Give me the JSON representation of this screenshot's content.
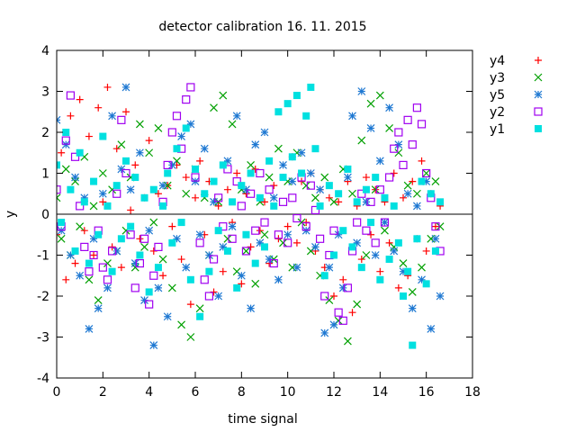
{
  "chart_data": {
    "type": "scatter",
    "title": "detector calibration 16. 11. 2015",
    "xlabel": "time signal",
    "ylabel": "y",
    "xlim": [
      0,
      18
    ],
    "ylim": [
      -4,
      4
    ],
    "xticks": [
      0,
      2,
      4,
      6,
      8,
      10,
      12,
      14,
      16,
      18
    ],
    "yticks": [
      -4,
      -3,
      -2,
      -1,
      0,
      1,
      2,
      3,
      4
    ],
    "grid": false,
    "zero_line": true,
    "legend": "outside-right",
    "sample_step": 0.2,
    "series": [
      {
        "name": "y4",
        "marker": "plus",
        "color": "#ff0000",
        "x": [
          0,
          0.2,
          0.4,
          0.6,
          0.8,
          1,
          1.2,
          1.4,
          1.6,
          1.8,
          2,
          2.2,
          2.4,
          2.6,
          2.8,
          3,
          3.2,
          3.4,
          3.6,
          3.8,
          4,
          4.2,
          4.4,
          4.6,
          4.8,
          5,
          5.2,
          5.4,
          5.6,
          5.8,
          6,
          6.2,
          6.4,
          6.6,
          6.8,
          7,
          7.2,
          7.4,
          7.6,
          7.8,
          8,
          8.2,
          8.4,
          8.6,
          8.8,
          9,
          9.2,
          9.4,
          9.6,
          9.8,
          10,
          10.2,
          10.4,
          10.6,
          10.8,
          11,
          11.2,
          11.4,
          11.6,
          11.8,
          12,
          12.2,
          12.4,
          12.6,
          12.8,
          13,
          13.2,
          13.4,
          13.6,
          13.8,
          14,
          14.2,
          14.4,
          14.6,
          14.8,
          15,
          15.2,
          15.4,
          15.6,
          15.8,
          16,
          16.2,
          16.4,
          16.6
        ],
        "y": [
          -0.5,
          1.5,
          -1.6,
          2.4,
          -1.2,
          2.8,
          -0.4,
          1.9,
          -1.0,
          2.6,
          0.3,
          3.1,
          -0.8,
          1.6,
          -1.3,
          2.5,
          0.1,
          1.2,
          -0.6,
          0.4,
          1.8,
          -0.9,
          0.5,
          -1.5,
          0.7,
          -0.3,
          1.2,
          -1.1,
          0.9,
          -2.2,
          0.4,
          1.3,
          -0.5,
          0.8,
          -1.9,
          0.2,
          -1.4,
          0.6,
          -0.2,
          1.0,
          -1.7,
          0.5,
          -0.8,
          1.1,
          -0.4,
          0.3,
          -1.2,
          0.7,
          -0.6,
          0.9,
          -0.3,
          1.4,
          -0.7,
          0.8,
          -0.2,
          1.0,
          -0.9,
          0.6,
          -1.3,
          0.4,
          -2.0,
          0.3,
          -1.6,
          0.8,
          -2.4,
          0.2,
          -1.1,
          0.9,
          -0.5,
          0.6,
          -1.4,
          0.3,
          -0.7,
          1.0,
          -1.8,
          0.4,
          -1.5,
          0.8,
          -0.6,
          1.3,
          -0.9,
          0.5,
          -0.3,
          0.2
        ]
      },
      {
        "name": "y3",
        "marker": "cross",
        "color": "#00a000",
        "x": [
          0,
          0.2,
          0.4,
          0.6,
          0.8,
          1,
          1.2,
          1.4,
          1.6,
          1.8,
          2,
          2.2,
          2.4,
          2.6,
          2.8,
          3,
          3.2,
          3.4,
          3.6,
          3.8,
          4,
          4.2,
          4.4,
          4.6,
          4.8,
          5,
          5.2,
          5.4,
          5.6,
          5.8,
          6,
          6.2,
          6.4,
          6.6,
          6.8,
          7,
          7.2,
          7.4,
          7.6,
          7.8,
          8,
          8.2,
          8.4,
          8.6,
          8.8,
          9,
          9.2,
          9.4,
          9.6,
          9.8,
          10,
          10.2,
          10.4,
          10.6,
          10.8,
          11,
          11.2,
          11.4,
          11.6,
          11.8,
          12,
          12.2,
          12.4,
          12.6,
          12.8,
          13,
          13.2,
          13.4,
          13.6,
          13.8,
          14,
          14.2,
          14.4,
          14.6,
          14.8,
          15,
          15.2,
          15.4,
          15.6,
          15.8,
          16,
          16.2,
          16.4,
          16.6
        ],
        "y": [
          0.4,
          -0.6,
          1.1,
          -1.0,
          0.8,
          -0.3,
          1.4,
          -1.6,
          0.2,
          -2.1,
          1.0,
          -1.2,
          0.6,
          -0.9,
          1.7,
          -0.4,
          0.9,
          -1.3,
          2.2,
          -0.8,
          1.5,
          -0.2,
          2.1,
          -1.1,
          0.7,
          -1.8,
          1.3,
          -2.7,
          0.5,
          -3.0,
          1.1,
          -2.3,
          0.4,
          -1.0,
          2.6,
          0.3,
          2.9,
          -0.6,
          2.2,
          -1.4,
          0.6,
          -0.9,
          1.2,
          -1.7,
          0.3,
          -0.5,
          0.9,
          -1.1,
          1.6,
          -0.7,
          0.8,
          -1.3,
          1.5,
          -0.2,
          0.7,
          -0.9,
          0.4,
          -1.5,
          0.9,
          -2.1,
          0.3,
          -2.6,
          1.1,
          -3.1,
          0.5,
          -2.2,
          1.8,
          -1.0,
          2.7,
          0.6,
          2.9,
          -0.4,
          2.1,
          -0.8,
          1.5,
          -1.2,
          0.7,
          -1.9,
          0.5,
          -1.3,
          1.0,
          -0.6,
          0.8,
          -0.3
        ]
      },
      {
        "name": "y5",
        "marker": "star",
        "color": "#1e78d2",
        "x": [
          0,
          0.2,
          0.4,
          0.6,
          0.8,
          1,
          1.2,
          1.4,
          1.6,
          1.8,
          2,
          2.2,
          2.4,
          2.6,
          2.8,
          3,
          3.2,
          3.4,
          3.6,
          3.8,
          4,
          4.2,
          4.4,
          4.6,
          4.8,
          5,
          5.2,
          5.4,
          5.6,
          5.8,
          6,
          6.2,
          6.4,
          6.6,
          6.8,
          7,
          7.2,
          7.4,
          7.6,
          7.8,
          8,
          8.2,
          8.4,
          8.6,
          8.8,
          9,
          9.2,
          9.4,
          9.6,
          9.8,
          10,
          10.2,
          10.4,
          10.6,
          10.8,
          11,
          11.2,
          11.4,
          11.6,
          11.8,
          12,
          12.2,
          12.4,
          12.6,
          12.8,
          13,
          13.2,
          13.4,
          13.6,
          13.8,
          14,
          14.2,
          14.4,
          14.6,
          14.8,
          15,
          15.2,
          15.4,
          15.6,
          15.8,
          16,
          16.2,
          16.4,
          16.6
        ],
        "y": [
          2.3,
          -0.4,
          1.7,
          -1.0,
          0.9,
          -1.5,
          0.4,
          -2.8,
          -0.6,
          -2.3,
          0.5,
          -1.8,
          2.4,
          -0.9,
          1.1,
          3.1,
          0.6,
          -1.2,
          1.5,
          -2.1,
          -0.4,
          -3.2,
          -1.8,
          0.7,
          -2.5,
          1.2,
          -0.6,
          1.9,
          -1.3,
          2.2,
          0.8,
          -0.5,
          1.6,
          -1.0,
          0.3,
          -2.0,
          -0.8,
          1.3,
          -0.3,
          2.4,
          -1.5,
          0.6,
          -2.3,
          1.7,
          -0.7,
          2.0,
          -1.1,
          0.4,
          -1.6,
          1.2,
          -0.5,
          0.8,
          -1.3,
          1.5,
          -0.4,
          1.0,
          -0.8,
          0.6,
          -2.9,
          -1.3,
          -2.7,
          -0.5,
          -1.8,
          0.9,
          2.4,
          -0.7,
          3.0,
          0.3,
          2.1,
          -1.0,
          1.3,
          -0.2,
          2.6,
          -0.9,
          1.7,
          -1.4,
          0.5,
          -2.3,
          0.2,
          -1.6,
          0.8,
          -2.8,
          -0.6,
          -2.0
        ]
      },
      {
        "name": "y2",
        "marker": "square",
        "color": "#a000f0",
        "x": [
          0,
          0.2,
          0.4,
          0.6,
          0.8,
          1,
          1.2,
          1.4,
          1.6,
          1.8,
          2,
          2.2,
          2.4,
          2.6,
          2.8,
          3,
          3.2,
          3.4,
          3.6,
          3.8,
          4,
          4.2,
          4.4,
          4.6,
          4.8,
          5,
          5.2,
          5.4,
          5.6,
          5.8,
          6,
          6.2,
          6.4,
          6.6,
          6.8,
          7,
          7.2,
          7.4,
          7.6,
          7.8,
          8,
          8.2,
          8.4,
          8.6,
          8.8,
          9,
          9.2,
          9.4,
          9.6,
          9.8,
          10,
          10.2,
          10.4,
          10.6,
          10.8,
          11,
          11.2,
          11.4,
          11.6,
          11.8,
          12,
          12.2,
          12.4,
          12.6,
          12.8,
          13,
          13.2,
          13.4,
          13.6,
          13.8,
          14,
          14.2,
          14.4,
          14.6,
          14.8,
          15,
          15.2,
          15.4,
          15.6,
          15.8,
          16,
          16.2,
          16.4,
          16.6
        ],
        "y": [
          0.6,
          -0.3,
          1.8,
          2.9,
          1.4,
          0.2,
          -0.8,
          -1.4,
          -1.0,
          -0.4,
          -1.3,
          -1.6,
          -0.9,
          0.5,
          2.3,
          1.0,
          -0.5,
          -1.8,
          -1.2,
          -0.6,
          -2.2,
          -1.5,
          -0.8,
          0.3,
          1.2,
          2.0,
          2.4,
          1.6,
          2.8,
          3.1,
          0.9,
          -0.7,
          -1.6,
          -2.0,
          -1.1,
          0.4,
          -0.3,
          1.1,
          -0.6,
          0.8,
          0.2,
          -0.9,
          0.5,
          -0.4,
          1.0,
          -0.2,
          0.6,
          -1.2,
          -0.5,
          0.3,
          -0.7,
          0.4,
          -0.1,
          0.9,
          -0.3,
          0.7,
          0.1,
          -0.6,
          -2.0,
          -1.0,
          -0.4,
          -2.4,
          -2.6,
          -1.8,
          -0.9,
          -0.2,
          0.5,
          -0.4,
          0.3,
          -0.7,
          0.6,
          -0.2,
          0.9,
          1.6,
          2.0,
          1.2,
          2.3,
          1.7,
          2.6,
          2.2,
          1.0,
          0.4,
          -0.3,
          -0.9
        ]
      },
      {
        "name": "y1",
        "marker": "filled-square",
        "color": "#00e0e0",
        "x": [
          0,
          0.2,
          0.4,
          0.6,
          0.8,
          1,
          1.2,
          1.4,
          1.6,
          1.8,
          2,
          2.2,
          2.4,
          2.6,
          2.8,
          3,
          3.2,
          3.4,
          3.6,
          3.8,
          4,
          4.2,
          4.4,
          4.6,
          4.8,
          5,
          5.2,
          5.4,
          5.6,
          5.8,
          6,
          6.2,
          6.4,
          6.6,
          6.8,
          7,
          7.2,
          7.4,
          7.6,
          7.8,
          8,
          8.2,
          8.4,
          8.6,
          8.8,
          9,
          9.2,
          9.4,
          9.6,
          9.8,
          10,
          10.2,
          10.4,
          10.6,
          10.8,
          11,
          11.2,
          11.4,
          11.6,
          11.8,
          12,
          12.2,
          12.4,
          12.6,
          12.8,
          13,
          13.2,
          13.4,
          13.6,
          13.8,
          14,
          14.2,
          14.4,
          14.6,
          14.8,
          15,
          15.2,
          15.4,
          15.6,
          15.8,
          16,
          16.2,
          16.4,
          16.6
        ],
        "y": [
          1.2,
          -0.2,
          2.0,
          0.6,
          -0.9,
          1.5,
          0.3,
          -1.2,
          0.8,
          -0.5,
          1.9,
          0.2,
          -1.4,
          0.7,
          -0.6,
          1.3,
          -0.3,
          0.9,
          -1.0,
          0.4,
          -1.9,
          0.6,
          -1.3,
          0.2,
          1.0,
          -0.7,
          1.6,
          -0.2,
          2.1,
          -1.6,
          1.1,
          -2.5,
          0.5,
          -1.4,
          0.8,
          -0.4,
          1.2,
          -0.9,
          0.3,
          -1.8,
          0.7,
          -0.5,
          1.0,
          -1.2,
          0.4,
          -0.8,
          1.3,
          0.2,
          2.5,
          0.9,
          2.7,
          1.4,
          2.9,
          1.0,
          2.4,
          3.1,
          1.6,
          0.2,
          -1.5,
          0.7,
          -1.0,
          0.5,
          -0.4,
          1.1,
          -0.8,
          0.3,
          -1.3,
          0.6,
          -0.2,
          0.9,
          -1.6,
          0.4,
          -1.1,
          0.2,
          -0.7,
          -2.0,
          -1.4,
          -3.2,
          -0.6,
          0.8,
          -1.7,
          0.5,
          -0.9,
          0.3
        ]
      }
    ]
  }
}
